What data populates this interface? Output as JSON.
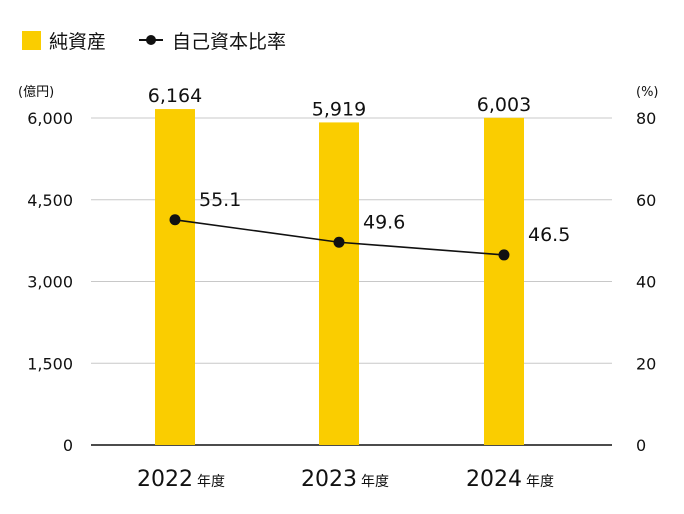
{
  "legend": {
    "bars_label": "純資産",
    "line_label": "自己資本比率"
  },
  "colors": {
    "bar": "#FACD00",
    "line": "#111111",
    "grid": "#c8c8c8",
    "axis": "#111111"
  },
  "chart_data": {
    "type": "bar",
    "categories": [
      "2022",
      "2023",
      "2024"
    ],
    "category_suffix": "年度",
    "series": [
      {
        "name": "純資産",
        "type": "bar",
        "axis": "left",
        "values": [
          6164,
          5919,
          6003
        ],
        "labels": [
          "6,164",
          "5,919",
          "6,003"
        ]
      },
      {
        "name": "自己資本比率",
        "type": "line",
        "axis": "right",
        "values": [
          55.1,
          49.6,
          46.5
        ],
        "labels": [
          "55.1",
          "49.6",
          "46.5"
        ]
      }
    ],
    "y_left": {
      "unit": "(億円)",
      "ylim": [
        0,
        6000
      ],
      "ticks": [
        0,
        1500,
        3000,
        4500,
        6000
      ],
      "tick_labels": [
        "0",
        "1,500",
        "3,000",
        "4,500",
        "6,000"
      ]
    },
    "y_right": {
      "unit": "(%)",
      "ylim": [
        0,
        80
      ],
      "ticks": [
        0,
        20,
        40,
        60,
        80
      ],
      "tick_labels": [
        "0",
        "20",
        "40",
        "60",
        "80"
      ]
    },
    "grid": true,
    "legend_position": "top-left"
  }
}
